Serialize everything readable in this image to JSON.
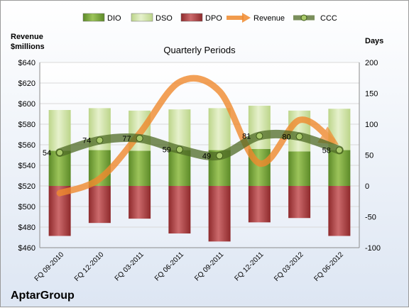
{
  "chart_data": {
    "type": "bar",
    "title": "Quarterly Periods",
    "company": "AptarGroup",
    "left_axis_label_line1": "Revenue",
    "left_axis_label_line2": "$millions",
    "right_axis_label": "Days",
    "categories": [
      "FQ 09-2010",
      "FQ 12-2010",
      "FQ 03-2011",
      "FQ 06-2011",
      "FQ 09-2011",
      "FQ 12-2011",
      "FQ 03-2012",
      "FQ 06-2012"
    ],
    "left_axis": {
      "min": 460,
      "max": 640,
      "step": 20,
      "ticks": [
        "$460",
        "$480",
        "$500",
        "$520",
        "$540",
        "$560",
        "$580",
        "$600",
        "$620",
        "$640"
      ]
    },
    "right_axis": {
      "min": -100,
      "max": 200,
      "step": 50,
      "ticks": [
        "-100",
        "-50",
        "0",
        "50",
        "100",
        "150",
        "200"
      ]
    },
    "legend": [
      "DIO",
      "DSO",
      "DPO",
      "Revenue",
      "CCC"
    ],
    "series": [
      {
        "name": "DIO",
        "axis": "right",
        "values": [
          57,
          58,
          57,
          58,
          58,
          60,
          56,
          58
        ],
        "color": "#7fa83e"
      },
      {
        "name": "DSO",
        "axis": "right",
        "values": [
          66,
          68,
          65,
          66,
          68,
          70,
          66,
          67
        ],
        "color": "#d3e5a9"
      },
      {
        "name": "DPO",
        "axis": "right",
        "values": [
          -81,
          -60,
          -53,
          -77,
          -90,
          -59,
          -52,
          -81
        ],
        "color": "#b5474a"
      },
      {
        "name": "Revenue",
        "axis": "left",
        "values": [
          513,
          527,
          571,
          621,
          612,
          542,
          584,
          564
        ],
        "color": "#e8852f"
      },
      {
        "name": "CCC",
        "axis": "right",
        "values": [
          54,
          74,
          77,
          59,
          49,
          81,
          80,
          58
        ],
        "color": "#6a8a35"
      }
    ],
    "ccc_labels": [
      "54",
      "74",
      "77",
      "59",
      "49",
      "81",
      "80",
      "58"
    ]
  }
}
